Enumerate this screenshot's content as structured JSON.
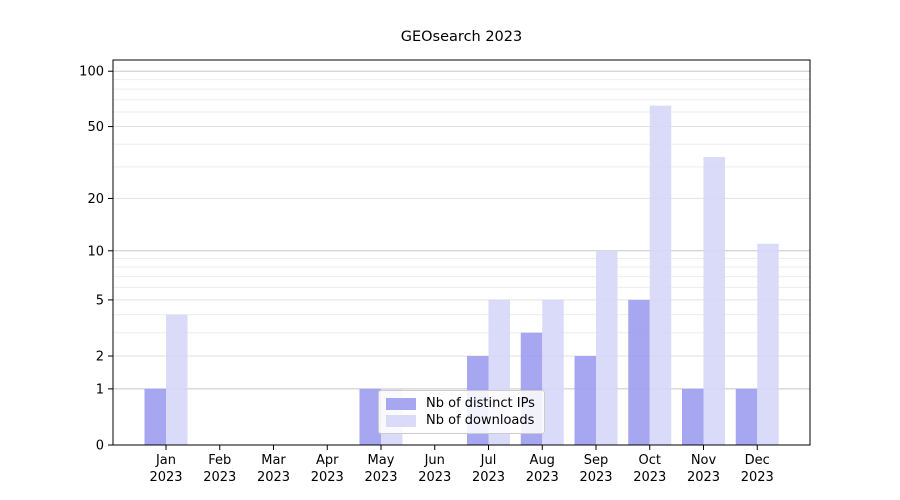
{
  "chart_data": {
    "type": "bar",
    "title": "GEOsearch 2023",
    "categories": [
      "Jan",
      "Feb",
      "Mar",
      "Apr",
      "May",
      "Jun",
      "Jul",
      "Aug",
      "Sep",
      "Oct",
      "Nov",
      "Dec"
    ],
    "category_year": "2023",
    "series": [
      {
        "name": "Nb of distinct IPs",
        "color": "#9c9cf0",
        "values": [
          1,
          0,
          0,
          0,
          1,
          0,
          2,
          3,
          2,
          5,
          1,
          1
        ]
      },
      {
        "name": "Nb of downloads",
        "color": "#d6d6f8",
        "values": [
          4,
          0,
          0,
          0,
          1,
          0,
          5,
          5,
          10,
          65,
          34,
          11
        ]
      }
    ],
    "yscale": "log1p",
    "ylim": [
      0,
      115
    ],
    "yticks": [
      0,
      1,
      2,
      5,
      10,
      20,
      50,
      100
    ],
    "ytick_labels": [
      "0",
      "1",
      "2",
      "5",
      "10",
      "20",
      "50",
      "100"
    ],
    "gridlines_major": [
      1,
      10,
      100
    ],
    "gridlines_medium": [
      2,
      5,
      20,
      50
    ],
    "gridlines_minor": [
      3,
      4,
      6,
      7,
      8,
      9,
      30,
      40,
      60,
      70,
      80,
      90
    ],
    "grid": "horizontal-only",
    "legend_position": "lower-center-inside",
    "xlabel": "",
    "ylabel": ""
  },
  "colors": {
    "axis": "#000000",
    "tick_text": "#000000",
    "grid_major": "#c8c8c8",
    "grid_medium": "#e2e2e2",
    "grid_minor": "#ededed",
    "legend_border": "#cccccc",
    "legend_bg": "#ffffff"
  }
}
